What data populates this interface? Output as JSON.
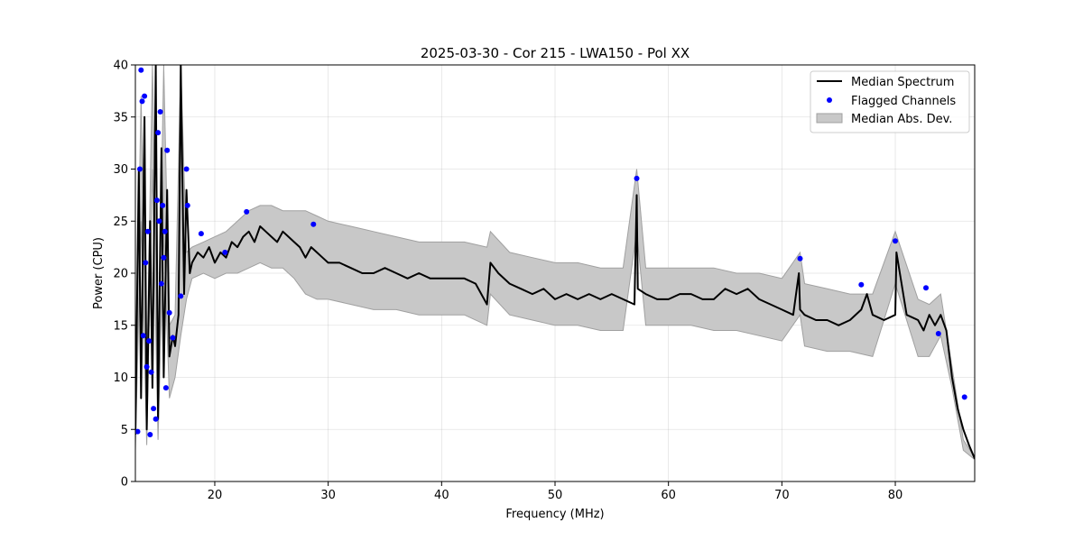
{
  "chart_data": {
    "type": "line",
    "title": "2025-03-30 - Cor 215 - LWA150 - Pol XX",
    "xlabel": "Frequency (MHz)",
    "ylabel": "Power (CPU)",
    "xlim": [
      13,
      87
    ],
    "ylim": [
      0,
      40
    ],
    "xticks": [
      20,
      30,
      40,
      50,
      60,
      70,
      80
    ],
    "yticks": [
      0,
      5,
      10,
      15,
      20,
      25,
      30,
      35,
      40
    ],
    "grid": true,
    "legend": {
      "position": "top-right",
      "entries": [
        "Median Spectrum",
        "Flagged Channels",
        "Median Abs. Dev."
      ]
    },
    "colors": {
      "median": "#000000",
      "flagged": "#0000ff",
      "mad_fill": "#c8c8c8",
      "mad_edge": "#a0a0a0"
    },
    "series": [
      {
        "name": "Median Spectrum",
        "x": [
          13.0,
          13.3,
          13.5,
          13.8,
          14.0,
          14.3,
          14.5,
          14.8,
          15.0,
          15.3,
          15.5,
          15.8,
          16.0,
          16.3,
          16.5,
          16.8,
          17.0,
          17.3,
          17.5,
          17.8,
          18.0,
          18.5,
          19.0,
          19.5,
          20.0,
          20.5,
          21.0,
          21.5,
          22.0,
          22.5,
          23.0,
          23.5,
          24.0,
          24.5,
          25.0,
          25.5,
          26.0,
          26.5,
          27.0,
          27.5,
          28.0,
          28.5,
          29.0,
          29.5,
          30.0,
          31.0,
          32.0,
          33.0,
          34.0,
          35.0,
          36.0,
          37.0,
          38.0,
          39.0,
          40.0,
          41.0,
          42.0,
          43.0,
          44.0,
          44.3,
          45.0,
          46.0,
          47.0,
          48.0,
          49.0,
          50.0,
          51.0,
          52.0,
          53.0,
          54.0,
          55.0,
          56.0,
          57.0,
          57.2,
          57.3,
          58.0,
          59.0,
          60.0,
          61.0,
          62.0,
          63.0,
          64.0,
          65.0,
          66.0,
          67.0,
          68.0,
          69.0,
          70.0,
          71.0,
          71.5,
          71.6,
          72.0,
          73.0,
          74.0,
          75.0,
          76.0,
          77.0,
          77.5,
          78.0,
          79.0,
          80.0,
          80.1,
          81.0,
          82.0,
          82.5,
          83.0,
          83.5,
          84.0,
          84.5,
          85.0,
          85.5,
          86.0,
          86.5,
          87.0
        ],
        "y": [
          4.5,
          30.0,
          8.0,
          35.0,
          5.0,
          25.0,
          9.0,
          40.0,
          6.0,
          32.0,
          10.0,
          28.0,
          12.0,
          14.0,
          13.0,
          16.0,
          40.0,
          18.0,
          28.0,
          20.0,
          21.0,
          22.0,
          21.5,
          22.5,
          21.0,
          22.0,
          21.5,
          23.0,
          22.5,
          23.5,
          24.0,
          23.0,
          24.5,
          24.0,
          23.5,
          23.0,
          24.0,
          23.5,
          23.0,
          22.5,
          21.5,
          22.5,
          22.0,
          21.5,
          21.0,
          21.0,
          20.5,
          20.0,
          20.0,
          20.5,
          20.0,
          19.5,
          20.0,
          19.5,
          19.5,
          19.5,
          19.5,
          19.0,
          17.0,
          21.0,
          20.0,
          19.0,
          18.5,
          18.0,
          18.5,
          17.5,
          18.0,
          17.5,
          18.0,
          17.5,
          18.0,
          17.5,
          17.0,
          27.5,
          18.5,
          18.0,
          17.5,
          17.5,
          18.0,
          18.0,
          17.5,
          17.5,
          18.5,
          18.0,
          18.5,
          17.5,
          17.0,
          16.5,
          16.0,
          20.0,
          16.5,
          16.0,
          15.5,
          15.5,
          15.0,
          15.5,
          16.5,
          18.0,
          16.0,
          15.5,
          16.0,
          22.0,
          16.0,
          15.5,
          14.5,
          16.0,
          15.0,
          16.0,
          14.5,
          10.0,
          7.0,
          5.0,
          3.5,
          2.2
        ]
      },
      {
        "name": "Median Abs. Dev.",
        "type": "area",
        "x": [
          13.0,
          13.5,
          14.0,
          14.5,
          15.0,
          15.5,
          16.0,
          16.5,
          17.0,
          17.5,
          18.0,
          19.0,
          20.0,
          21.0,
          22.0,
          23.0,
          24.0,
          25.0,
          26.0,
          27.0,
          28.0,
          29.0,
          30.0,
          32.0,
          34.0,
          36.0,
          38.0,
          40.0,
          42.0,
          44.0,
          44.3,
          46.0,
          48.0,
          50.0,
          52.0,
          54.0,
          56.0,
          57.2,
          58.0,
          60.0,
          62.0,
          64.0,
          66.0,
          68.0,
          70.0,
          71.6,
          72.0,
          74.0,
          76.0,
          78.0,
          80.0,
          82.0,
          83.0,
          84.0,
          85.0,
          86.0,
          87.0
        ],
        "upper": [
          6.0,
          37.0,
          10.0,
          40.0,
          10.0,
          40.0,
          15.0,
          16.0,
          40.0,
          22.0,
          22.5,
          23.0,
          23.5,
          24.0,
          25.0,
          26.0,
          26.5,
          26.5,
          26.0,
          26.0,
          26.0,
          25.5,
          25.0,
          24.5,
          24.0,
          23.5,
          23.0,
          23.0,
          23.0,
          22.5,
          24.0,
          22.0,
          21.5,
          21.0,
          21.0,
          20.5,
          20.5,
          30.0,
          20.5,
          20.5,
          20.5,
          20.5,
          20.0,
          20.0,
          19.5,
          22.0,
          19.0,
          18.5,
          18.0,
          18.0,
          24.0,
          17.5,
          17.0,
          18.0,
          11.0,
          4.0,
          2.3
        ],
        "lower": [
          3.0,
          25.0,
          3.5,
          30.0,
          4.0,
          24.0,
          8.0,
          10.0,
          14.0,
          17.5,
          19.5,
          20.0,
          19.5,
          20.0,
          20.0,
          20.5,
          21.0,
          20.5,
          20.5,
          19.5,
          18.0,
          17.5,
          17.5,
          17.0,
          16.5,
          16.5,
          16.0,
          16.0,
          16.0,
          15.0,
          18.0,
          16.0,
          15.5,
          15.0,
          15.0,
          14.5,
          14.5,
          24.0,
          15.0,
          15.0,
          15.0,
          14.5,
          14.5,
          14.0,
          13.5,
          16.0,
          13.0,
          12.5,
          12.5,
          12.0,
          19.0,
          12.0,
          12.0,
          14.0,
          9.0,
          3.0,
          2.1
        ]
      },
      {
        "name": "Flagged Channels",
        "type": "scatter",
        "x": [
          13.2,
          13.4,
          13.5,
          13.6,
          13.7,
          13.8,
          13.9,
          14.0,
          14.1,
          14.2,
          14.3,
          14.4,
          14.6,
          14.8,
          14.9,
          15.0,
          15.1,
          15.2,
          15.3,
          15.4,
          15.5,
          15.6,
          15.7,
          15.8,
          16.0,
          16.3,
          17.0,
          17.5,
          17.6,
          18.8,
          20.9,
          22.8,
          28.7,
          57.2,
          71.6,
          77.0,
          80.0,
          82.7,
          83.8,
          86.1
        ],
        "y": [
          4.8,
          30.0,
          39.5,
          36.5,
          14.0,
          37.0,
          21.0,
          11.0,
          24.0,
          13.5,
          4.5,
          10.5,
          7.0,
          6.0,
          27.0,
          33.5,
          25.0,
          35.5,
          19.0,
          26.5,
          21.5,
          24.0,
          9.0,
          31.8,
          16.2,
          13.8,
          17.8,
          30.0,
          26.5,
          23.8,
          22.0,
          25.9,
          24.7,
          29.1,
          21.4,
          18.9,
          23.1,
          18.6,
          14.2,
          8.1
        ]
      }
    ]
  }
}
